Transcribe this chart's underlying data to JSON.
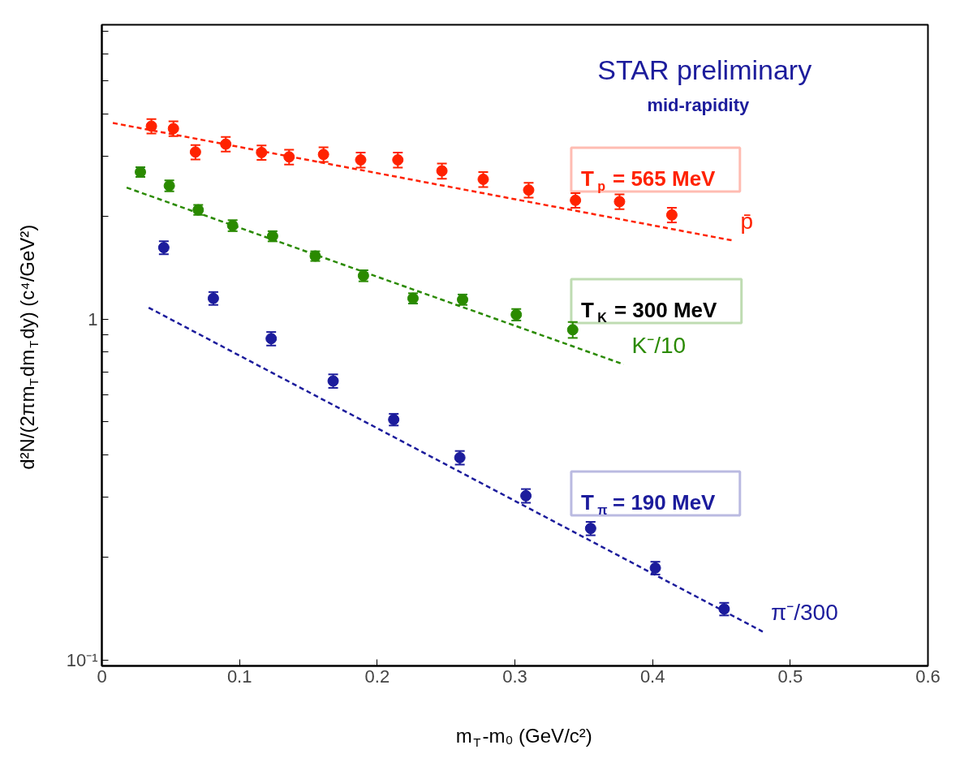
{
  "chart_data": {
    "type": "scatter",
    "xlabel": "m$_{T}$-m₀ (GeV/c²)",
    "ylabel": "d²N/(2πm$_{T}$dm$_{T}$dy) (c⁴/GeV²)",
    "annotations": [
      "STAR preliminary",
      "mid-rapidity",
      "T$_{p}$ = 565 MeV",
      "T$_{K}$ = 300 MeV",
      "T$_{π}$ = 190 MeV"
    ],
    "xlim": [
      0,
      0.6
    ],
    "xticks": [
      0,
      0.1,
      0.2,
      0.3,
      0.4,
      0.5,
      0.6
    ],
    "ylim": [
      0.096,
      7.3
    ],
    "yticks": [
      {
        "value": 0.1,
        "label": "10⁻¹"
      },
      {
        "value": 0.2,
        "label": null
      },
      {
        "value": 0.3,
        "label": null
      },
      {
        "value": 0.4,
        "label": null
      },
      {
        "value": 0.5,
        "label": null
      },
      {
        "value": 0.6,
        "label": null
      },
      {
        "value": 0.7,
        "label": null
      },
      {
        "value": 0.8,
        "label": null
      },
      {
        "value": 0.9,
        "label": null
      },
      1,
      {
        "value": 2,
        "label": null
      },
      {
        "value": 3,
        "label": null
      },
      {
        "value": 4,
        "label": null
      },
      {
        "value": 5,
        "label": null
      },
      {
        "value": 6,
        "label": null
      },
      {
        "value": 7,
        "label": null
      }
    ],
    "log": "y",
    "marker": "circle",
    "series": [
      {
        "name": "p̄",
        "color": "#ff2200",
        "x": [
          0.036,
          0.052,
          0.068,
          0.09,
          0.116,
          0.136,
          0.161,
          0.188,
          0.215,
          0.247,
          0.277,
          0.31,
          0.344,
          0.376,
          0.414
        ],
        "values": [
          3.68,
          3.62,
          3.09,
          3.26,
          3.08,
          2.99,
          3.04,
          2.93,
          2.93,
          2.72,
          2.57,
          2.39,
          2.23,
          2.21,
          2.02
        ],
        "errors": [
          0.18,
          0.18,
          0.15,
          0.16,
          0.15,
          0.15,
          0.15,
          0.15,
          0.15,
          0.14,
          0.13,
          0.12,
          0.11,
          0.11,
          0.1
        ]
      },
      {
        "type": "line",
        "color": "#ff2200",
        "line_style": "dashed",
        "marker": "none",
        "x": [
          0.008,
          0.458
        ],
        "values": [
          3.76,
          1.7
        ]
      },
      {
        "name": "K⁻/10",
        "color": "#2a8a00",
        "x": [
          0.028,
          0.049,
          0.07,
          0.095,
          0.124,
          0.155,
          0.19,
          0.226,
          0.262,
          0.301,
          0.342
        ],
        "values": [
          2.7,
          2.46,
          2.09,
          1.88,
          1.75,
          1.53,
          1.34,
          1.15,
          1.14,
          1.03,
          0.93
        ],
        "errors": [
          0.09,
          0.09,
          0.07,
          0.07,
          0.06,
          0.05,
          0.05,
          0.04,
          0.04,
          0.04,
          0.05
        ]
      },
      {
        "type": "line",
        "color": "#2a8a00",
        "line_style": "dashed",
        "marker": "none",
        "x": [
          0.018,
          0.379
        ],
        "values": [
          2.43,
          0.736
        ]
      },
      {
        "name": "π⁻/300",
        "color": "#1c1c9c",
        "x": [
          0.045,
          0.081,
          0.123,
          0.168,
          0.212,
          0.26,
          0.308,
          0.355,
          0.402,
          0.452
        ],
        "values": [
          1.62,
          1.15,
          0.876,
          0.658,
          0.507,
          0.392,
          0.303,
          0.243,
          0.186,
          0.141
        ],
        "errors": [
          0.07,
          0.05,
          0.04,
          0.03,
          0.02,
          0.018,
          0.014,
          0.011,
          0.008,
          0.006
        ]
      },
      {
        "type": "line",
        "color": "#1c1c9c",
        "line_style": "dashed",
        "marker": "none",
        "x": [
          0.034,
          0.48
        ],
        "values": [
          1.08,
          0.121
        ]
      }
    ]
  }
}
